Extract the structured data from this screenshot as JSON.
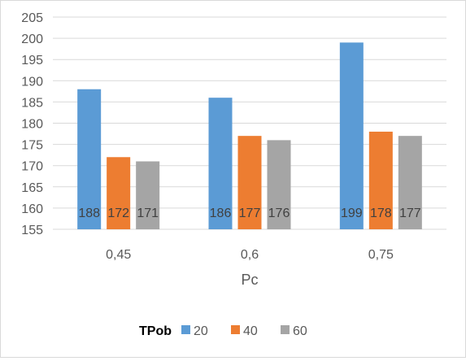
{
  "chart_data": {
    "type": "bar",
    "categories": [
      "0,45",
      "0,6",
      "0,75"
    ],
    "series": [
      {
        "name": "20",
        "values": [
          188,
          186,
          199
        ],
        "labels": [
          "188",
          "186",
          "199"
        ],
        "color": "#5b9bd5"
      },
      {
        "name": "40",
        "values": [
          172,
          177,
          178
        ],
        "labels": [
          "172",
          "177",
          "178"
        ],
        "color": "#ed7d31"
      },
      {
        "name": "60",
        "values": [
          171,
          176,
          177
        ],
        "labels": [
          "171",
          "176",
          "177"
        ],
        "color": "#a5a5a5"
      }
    ],
    "xlabel": "Pc",
    "ylabel": "",
    "ylim": [
      155,
      205
    ],
    "yticks": [
      155,
      160,
      165,
      170,
      175,
      180,
      185,
      190,
      195,
      200,
      205
    ],
    "ytick_labels": [
      "155",
      "160",
      "165",
      "170",
      "175",
      "180",
      "185",
      "190",
      "195",
      "200",
      "205"
    ],
    "grid": true,
    "legend": {
      "title": "TPob",
      "placement": "bottom"
    },
    "data_label_placement": "inside-base"
  }
}
